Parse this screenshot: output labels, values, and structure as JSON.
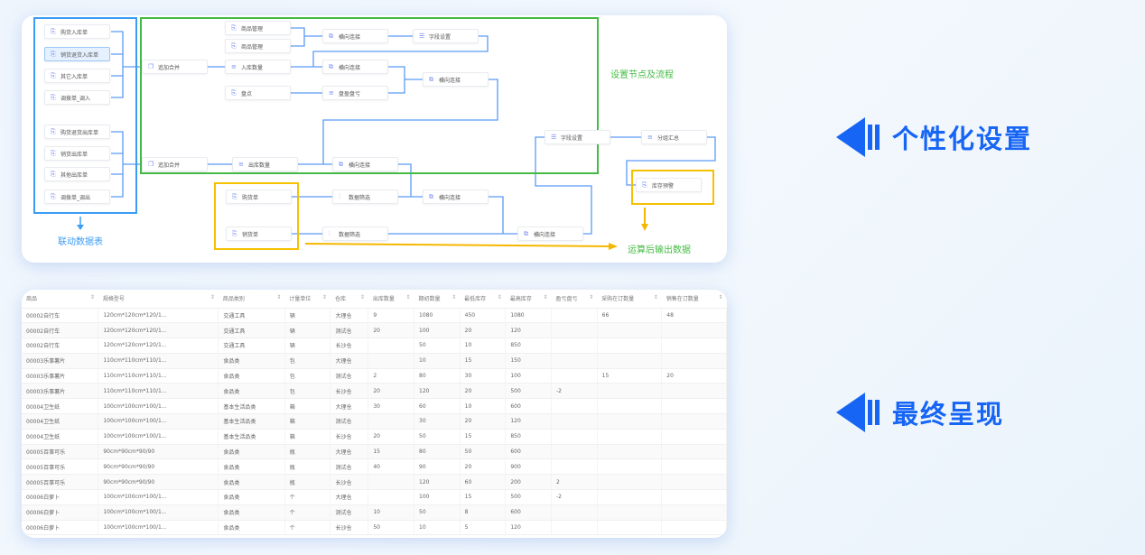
{
  "diagram": {
    "linked_tables_label": "联动数据表",
    "flow_label": "设置节点及流程",
    "output_label": "运算后输出数据",
    "colors": {
      "linked": "#3a9cf5",
      "flow": "#44bb44",
      "output": "#f5b800",
      "wire": "#5b9bf5"
    },
    "inbound": [
      "购货入库单",
      "销货退货入库单",
      "其它入库单",
      "调拨单_调入"
    ],
    "outbound": [
      "购货退货出库单",
      "销货出库单",
      "其他出库单",
      "调拨单_调出"
    ],
    "nodes": {
      "append1": "追加合并",
      "append2": "追加合并",
      "goods1": "商品管理",
      "goods2": "商品管理",
      "in_qty": "入库数量",
      "stocktake": "盘点",
      "join1": "横向连接",
      "field1": "字段设置",
      "join2": "横向连接",
      "profit_loss": "盘盈盘亏",
      "join3": "横向连接",
      "out_qty": "出库数量",
      "join4": "横向连接",
      "purchase": "购货单",
      "sales": "销货单",
      "filter1": "数据筛选",
      "join5": "横向连接",
      "filter2": "数据筛选",
      "join6": "横向连接",
      "field2": "字段设置",
      "group": "分组汇总",
      "alert": "库存预警"
    }
  },
  "table": {
    "columns": [
      "商品",
      "规格型号",
      "商品类别",
      "计量单位",
      "仓库",
      "出库数量",
      "期初数量",
      "最低库存",
      "最高库存",
      "盈亏盘亏",
      "采购在订数量",
      "销售在订数量"
    ],
    "rows": [
      [
        "00002自行车",
        "120cm*120cm*120/1...",
        "交通工具",
        "辆",
        "大理仓",
        "9",
        "1080",
        "450",
        "1080",
        "",
        "66",
        "48"
      ],
      [
        "00002自行车",
        "120cm*120cm*120/1...",
        "交通工具",
        "辆",
        "测试仓",
        "20",
        "100",
        "20",
        "120",
        "",
        "",
        ""
      ],
      [
        "00002自行车",
        "120cm*120cm*120/1...",
        "交通工具",
        "辆",
        "长沙仓",
        "",
        "50",
        "10",
        "850",
        "",
        "",
        ""
      ],
      [
        "00003乐事薯片",
        "110cm*110cm*110/1...",
        "食品类",
        "包",
        "大理仓",
        "",
        "10",
        "15",
        "150",
        "",
        "",
        ""
      ],
      [
        "00003乐事薯片",
        "110cm*110cm*110/1...",
        "食品类",
        "包",
        "测试仓",
        "2",
        "80",
        "30",
        "100",
        "",
        "15",
        "20"
      ],
      [
        "00003乐事薯片",
        "110cm*110cm*110/1...",
        "食品类",
        "包",
        "长沙仓",
        "20",
        "120",
        "20",
        "500",
        "-2",
        "",
        ""
      ],
      [
        "00004卫生纸",
        "100cm*100cm*100/1...",
        "基本生活品类",
        "箱",
        "大理仓",
        "30",
        "60",
        "10",
        "600",
        "",
        "",
        ""
      ],
      [
        "00004卫生纸",
        "100cm*100cm*100/1...",
        "基本生活品类",
        "箱",
        "测试仓",
        "",
        "30",
        "20",
        "120",
        "",
        "",
        ""
      ],
      [
        "00004卫生纸",
        "100cm*100cm*100/1...",
        "基本生活品类",
        "箱",
        "长沙仓",
        "20",
        "50",
        "15",
        "850",
        "",
        "",
        ""
      ],
      [
        "00005百事可乐",
        "90cm*90cm*90/90",
        "食品类",
        "瓶",
        "大理仓",
        "15",
        "80",
        "50",
        "600",
        "",
        "",
        ""
      ],
      [
        "00005百事可乐",
        "90cm*90cm*90/90",
        "食品类",
        "瓶",
        "测试仓",
        "40",
        "90",
        "20",
        "900",
        "",
        "",
        ""
      ],
      [
        "00005百事可乐",
        "90cm*90cm*90/90",
        "食品类",
        "瓶",
        "长沙仓",
        "",
        "120",
        "60",
        "200",
        "2",
        "",
        ""
      ],
      [
        "00006白萝卜",
        "100cm*100cm*100/1...",
        "食品类",
        "个",
        "大理仓",
        "",
        "100",
        "15",
        "500",
        "-2",
        "",
        ""
      ],
      [
        "00006白萝卜",
        "100cm*100cm*100/1...",
        "食品类",
        "个",
        "测试仓",
        "10",
        "50",
        "8",
        "600",
        "",
        "",
        ""
      ],
      [
        "00006白萝卜",
        "100cm*100cm*100/1...",
        "食品类",
        "个",
        "长沙仓",
        "50",
        "10",
        "5",
        "120",
        "",
        "",
        ""
      ]
    ]
  },
  "callouts": {
    "personalize": "个性化设置",
    "final": "最终呈现",
    "accent": "#1665f5"
  }
}
